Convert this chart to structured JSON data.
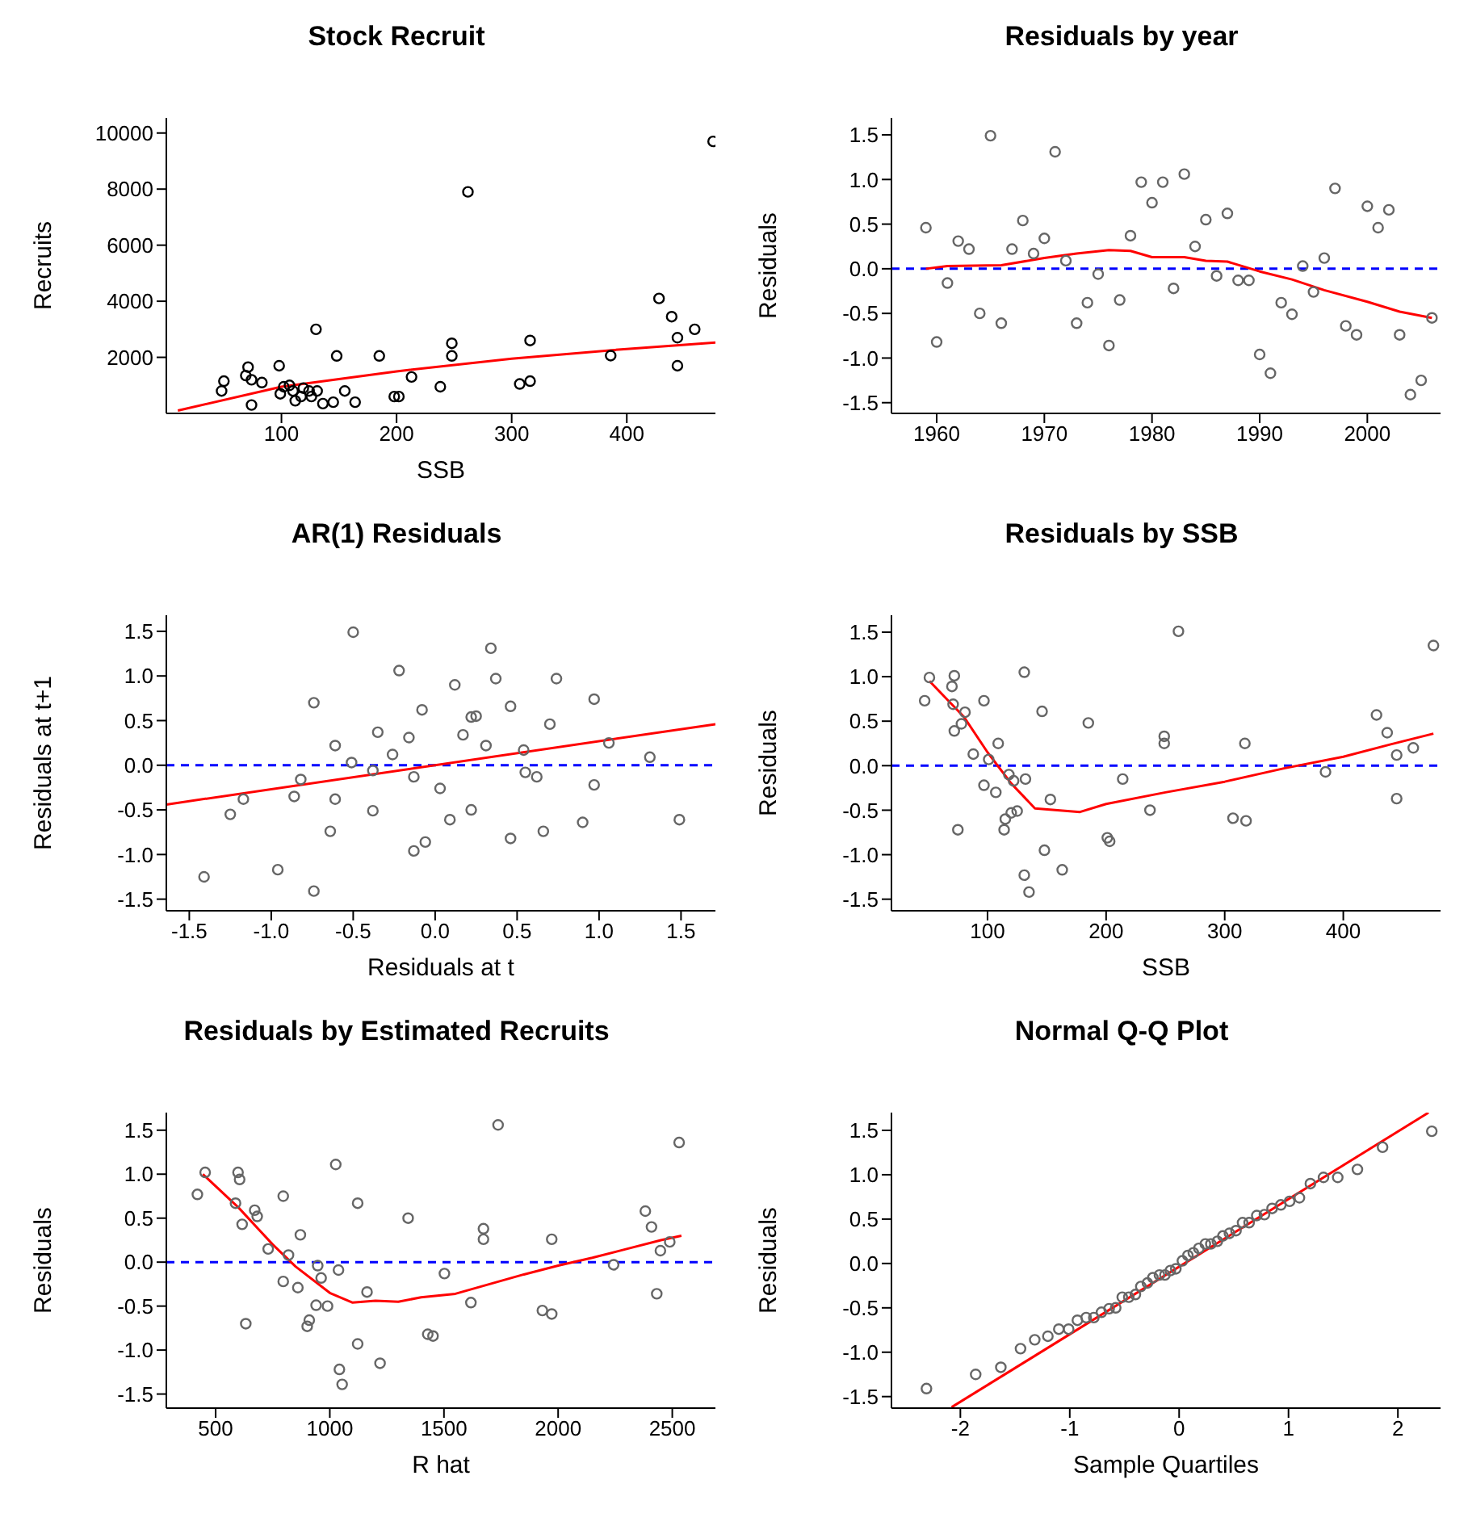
{
  "chart_data": [
    {
      "type": "scatter",
      "title": "Stock Recruit",
      "xlabel": "SSB",
      "ylabel": "Recruits",
      "xlim": [
        0,
        477
      ],
      "xticks": [
        100,
        200,
        300,
        400
      ],
      "ylim": [
        0,
        10540
      ],
      "yticks": [
        2000,
        4000,
        6000,
        8000,
        10000
      ],
      "series": [
        {
          "marker": "circle",
          "color": "#000000",
          "x": [
            475,
            262,
            428,
            439,
            459,
            444,
            444,
            386,
            316,
            316,
            307,
            248,
            248,
            238,
            213,
            202,
            198,
            185,
            148,
            130,
            98,
            71,
            69,
            74,
            83,
            50,
            48,
            74,
            107,
            99,
            112,
            119,
            124,
            131,
            136,
            145,
            155,
            164,
            110,
            117,
            102,
            126
          ],
          "values": [
            9700,
            7900,
            4100,
            3450,
            3000,
            2700,
            1700,
            2060,
            2600,
            1150,
            1050,
            2500,
            2050,
            950,
            1300,
            600,
            600,
            2050,
            2050,
            3000,
            1700,
            1650,
            1350,
            1200,
            1100,
            1150,
            800,
            300,
            1000,
            700,
            450,
            900,
            800,
            800,
            350,
            400,
            800,
            400,
            800,
            600,
            950,
            600
          ]
        },
        {
          "type": "line",
          "marker": "none",
          "color": "#ff0000",
          "x": [
            10,
            100,
            200,
            300,
            400,
            477
          ],
          "values": [
            100,
            950,
            1500,
            1950,
            2300,
            2530
          ]
        }
      ]
    },
    {
      "type": "scatter",
      "title": "Residuals by year",
      "ylabel": "Residuals",
      "xlim": [
        1955.8,
        2006.8
      ],
      "xticks": [
        1960,
        1970,
        1980,
        1990,
        2000
      ],
      "ylim": [
        -1.62,
        1.69
      ],
      "yticks": [
        -1.5,
        {
          "value": -1,
          "label": "-1.0"
        },
        -0.5,
        {
          "value": 0,
          "label": "0.0"
        },
        0.5,
        {
          "value": 1,
          "label": "1.0"
        },
        1.5
      ],
      "ref_lines": [
        {
          "axis": "y",
          "value": 0,
          "color": "#0000ff",
          "line_style": "dashed"
        }
      ],
      "series": [
        {
          "marker": "circle",
          "color": "#666666",
          "x": [
            1959,
            1960,
            1961,
            1962,
            1963,
            1964,
            1965,
            1966,
            1967,
            1968,
            1969,
            1970,
            1971,
            1972,
            1973,
            1974,
            1975,
            1976,
            1977,
            1978,
            1979,
            1980,
            1981,
            1982,
            1983,
            1984,
            1985,
            1986,
            1987,
            1988,
            1989,
            1990,
            1991,
            1992,
            1993,
            1994,
            1995,
            1996,
            1997,
            1998,
            1999,
            2000,
            2001,
            2002,
            2003,
            2004,
            2005,
            2006
          ],
          "values": [
            0.46,
            -0.82,
            -0.16,
            0.31,
            0.22,
            -0.5,
            1.49,
            -0.61,
            0.22,
            0.54,
            0.17,
            0.34,
            1.31,
            0.09,
            -0.61,
            -0.38,
            -0.06,
            -0.86,
            -0.35,
            0.37,
            0.97,
            0.74,
            0.97,
            -0.22,
            1.06,
            0.25,
            0.55,
            -0.08,
            0.62,
            -0.13,
            -0.13,
            -0.96,
            -1.17,
            -0.38,
            -0.51,
            0.03,
            -0.26,
            0.12,
            0.9,
            -0.64,
            -0.74,
            0.7,
            0.46,
            0.66,
            -0.74,
            -1.41,
            -1.25,
            -0.55
          ]
        },
        {
          "type": "line",
          "marker": "none",
          "color": "#ff0000",
          "x": [
            1959,
            1961,
            1966,
            1970,
            1973,
            1976,
            1978,
            1980,
            1983,
            1985,
            1987,
            1990,
            1993,
            1996,
            2000,
            2003,
            2006
          ],
          "values": [
            0,
            0.03,
            0.04,
            0.12,
            0.17,
            0.21,
            0.2,
            0.13,
            0.13,
            0.09,
            0.08,
            -0.03,
            -0.12,
            -0.24,
            -0.37,
            -0.48,
            -0.55
          ]
        }
      ]
    },
    {
      "type": "scatter",
      "title": "AR(1) Residuals",
      "xlabel": "Residuals at t",
      "ylabel": "Residuals at t+1",
      "xlim": [
        -1.64,
        1.71
      ],
      "xticks": [
        -1.5,
        {
          "value": -1,
          "label": "-1.0"
        },
        -0.5,
        {
          "value": 0,
          "label": "0.0"
        },
        0.5,
        {
          "value": 1,
          "label": "1.0"
        },
        1.5
      ],
      "ylim": [
        -1.63,
        1.68
      ],
      "yticks": [
        -1.5,
        {
          "value": -1,
          "label": "-1.0"
        },
        -0.5,
        {
          "value": 0,
          "label": "0.0"
        },
        0.5,
        {
          "value": 1,
          "label": "1.0"
        },
        1.5
      ],
      "ref_lines": [
        {
          "axis": "y",
          "value": 0,
          "color": "#0000ff",
          "line_style": "dashed"
        }
      ],
      "series": [
        {
          "marker": "circle",
          "color": "#666666",
          "x": [
            0.46,
            -0.82,
            -0.16,
            0.31,
            0.22,
            -0.5,
            1.49,
            -0.61,
            0.22,
            0.54,
            0.17,
            0.34,
            1.31,
            0.09,
            -0.61,
            -0.38,
            -0.06,
            -0.86,
            -0.35,
            0.37,
            0.97,
            0.74,
            0.97,
            -0.22,
            1.06,
            0.25,
            0.55,
            -0.08,
            0.62,
            -0.13,
            -0.13,
            -0.96,
            -1.17,
            -0.38,
            -0.51,
            0.03,
            -0.26,
            0.12,
            0.9,
            -0.64,
            -0.74,
            0.7,
            0.46,
            0.66,
            -0.74,
            -1.41,
            -1.25
          ],
          "values": [
            -0.82,
            -0.16,
            0.31,
            0.22,
            -0.5,
            1.49,
            -0.61,
            0.22,
            0.54,
            0.17,
            0.34,
            1.31,
            0.09,
            -0.61,
            -0.38,
            -0.06,
            -0.86,
            -0.35,
            0.37,
            0.97,
            0.74,
            0.97,
            -0.22,
            1.06,
            0.25,
            0.55,
            -0.08,
            0.62,
            -0.13,
            -0.13,
            -0.96,
            -1.17,
            -0.38,
            -0.51,
            0.03,
            -0.26,
            0.12,
            0.9,
            -0.64,
            -0.74,
            0.7,
            0.46,
            0.66,
            -0.74,
            -1.41,
            -1.25,
            -0.55
          ]
        },
        {
          "type": "line",
          "marker": "none",
          "color": "#ff0000",
          "x": [
            -1.64,
            1.71
          ],
          "values": [
            -0.44,
            0.46
          ]
        }
      ]
    },
    {
      "type": "scatter",
      "title": "Residuals by SSB",
      "xlabel": "SSB",
      "ylabel": "Residuals",
      "xlim": [
        19,
        482
      ],
      "xticks": [
        100,
        200,
        300,
        400
      ],
      "ylim": [
        -1.63,
        1.69
      ],
      "yticks": [
        -1.5,
        {
          "value": -1,
          "label": "-1.0"
        },
        -0.5,
        {
          "value": 0,
          "label": "0.0"
        },
        0.5,
        {
          "value": 1,
          "label": "1.0"
        },
        1.5
      ],
      "ref_lines": [
        {
          "axis": "y",
          "value": 0,
          "color": "#0000ff",
          "line_style": "dashed"
        }
      ],
      "series": [
        {
          "marker": "circle",
          "color": "#666666",
          "x": [
            51,
            47,
            72,
            70,
            71,
            81,
            78,
            72,
            75,
            88,
            97,
            101,
            109,
            97,
            107,
            118,
            122,
            132,
            131,
            115,
            114,
            120,
            125,
            131,
            135,
            146,
            148,
            153,
            163,
            185,
            201,
            203,
            214,
            237,
            249,
            249,
            261,
            307,
            318,
            317,
            385,
            428,
            437,
            445,
            445,
            459,
            476
          ],
          "values": [
            0.99,
            0.73,
            1.01,
            0.89,
            0.69,
            0.6,
            0.47,
            0.39,
            -0.72,
            0.13,
            0.73,
            0.07,
            0.25,
            -0.22,
            -0.3,
            -0.1,
            -0.17,
            -0.15,
            1.05,
            -0.6,
            -0.72,
            -0.53,
            -0.51,
            -1.23,
            -1.42,
            0.61,
            -0.95,
            -0.38,
            -1.17,
            0.48,
            -0.81,
            -0.85,
            -0.15,
            -0.5,
            0.33,
            0.25,
            1.51,
            -0.59,
            -0.62,
            0.25,
            -0.07,
            0.57,
            0.37,
            0.12,
            -0.37,
            0.2,
            1.35
          ]
        },
        {
          "type": "line",
          "marker": "none",
          "color": "#ff0000",
          "x": [
            51,
            80,
            100,
            120,
            140,
            178,
            200,
            250,
            300,
            350,
            400,
            440,
            476
          ],
          "values": [
            0.95,
            0.55,
            0.15,
            -0.2,
            -0.48,
            -0.52,
            -0.43,
            -0.3,
            -0.18,
            -0.03,
            0.1,
            0.24,
            0.36
          ]
        }
      ]
    },
    {
      "type": "scatter",
      "title": "Residuals by Estimated Recruits",
      "xlabel": "R hat",
      "ylabel": "Residuals",
      "xlim": [
        284,
        2689
      ],
      "xticks": [
        500,
        1000,
        1500,
        2000,
        2500
      ],
      "ylim": [
        -1.66,
        1.7
      ],
      "yticks": [
        -1.5,
        {
          "value": -1,
          "label": "-1.0"
        },
        -0.5,
        {
          "value": 0,
          "label": "0.0"
        },
        0.5,
        {
          "value": 1,
          "label": "1.0"
        },
        1.5
      ],
      "ref_lines": [
        {
          "axis": "y",
          "value": 0,
          "color": "#0000ff",
          "line_style": "dashed"
        }
      ],
      "series": [
        {
          "marker": "circle",
          "color": "#666666",
          "x": [
            454,
            420,
            598,
            605,
            587,
            616,
            671,
            682,
            632,
            730,
            796,
            819,
            871,
            796,
            860,
            947,
            962,
            1038,
            1026,
            940,
            910,
            901,
            990,
            1042,
            1054,
            1122,
            1122,
            1163,
            1220,
            1343,
            1429,
            1452,
            1502,
            1618,
            1673,
            1673,
            1737,
            1931,
            1972,
            1972,
            2243,
            2382,
            2409,
            2448,
            2432,
            2489,
            2530
          ],
          "values": [
            1.02,
            0.77,
            1.02,
            0.94,
            0.67,
            0.43,
            0.59,
            0.52,
            -0.7,
            0.15,
            0.75,
            0.08,
            0.31,
            -0.22,
            -0.29,
            -0.04,
            -0.18,
            -0.09,
            1.11,
            -0.49,
            -0.66,
            -0.73,
            -0.5,
            -1.22,
            -1.39,
            0.67,
            -0.93,
            -0.34,
            -1.15,
            0.5,
            -0.82,
            -0.84,
            -0.13,
            -0.46,
            0.38,
            0.26,
            1.56,
            -0.55,
            -0.59,
            0.26,
            -0.03,
            0.58,
            0.4,
            0.13,
            -0.36,
            0.23,
            1.36
          ]
        },
        {
          "type": "line",
          "marker": "none",
          "color": "#ff0000",
          "x": [
            444,
            600,
            750,
            850,
            1000,
            1100,
            1200,
            1300,
            1400,
            1550,
            1700,
            1850,
            2000,
            2150,
            2300,
            2450,
            2540
          ],
          "values": [
            1.0,
            0.62,
            0.2,
            -0.05,
            -0.35,
            -0.46,
            -0.44,
            -0.45,
            -0.4,
            -0.36,
            -0.25,
            -0.14,
            -0.04,
            0.05,
            0.15,
            0.25,
            0.3
          ]
        }
      ]
    },
    {
      "type": "scatter",
      "title": "Normal Q-Q Plot",
      "xlabel": "Sample Quartiles",
      "ylabel": "Residuals",
      "xlim": [
        -2.63,
        2.39
      ],
      "xticks": [
        -2,
        -1,
        0,
        1,
        2
      ],
      "ylim": [
        -1.63,
        1.7
      ],
      "yticks": [
        -1.5,
        {
          "value": -1,
          "label": "-1.0"
        },
        -0.5,
        {
          "value": 0,
          "label": "0.0"
        },
        0.5,
        {
          "value": 1,
          "label": "1.0"
        },
        1.5
      ],
      "series": [
        {
          "marker": "circle",
          "color": "#666666",
          "x": [
            -2.31,
            -1.86,
            -1.63,
            -1.45,
            -1.32,
            -1.2,
            -1.1,
            -1.01,
            -0.93,
            -0.85,
            -0.78,
            -0.71,
            -0.64,
            -0.58,
            -0.52,
            -0.46,
            -0.4,
            -0.35,
            -0.29,
            -0.24,
            -0.18,
            -0.13,
            -0.08,
            -0.03,
            0.03,
            0.08,
            0.13,
            0.18,
            0.24,
            0.29,
            0.35,
            0.4,
            0.46,
            0.52,
            0.58,
            0.64,
            0.71,
            0.78,
            0.85,
            0.93,
            1.01,
            1.1,
            1.2,
            1.32,
            1.45,
            1.63,
            1.86,
            2.31
          ],
          "values": [
            -1.41,
            -1.25,
            -1.17,
            -0.96,
            -0.86,
            -0.82,
            -0.74,
            -0.74,
            -0.64,
            -0.61,
            -0.61,
            -0.55,
            -0.51,
            -0.5,
            -0.38,
            -0.38,
            -0.35,
            -0.26,
            -0.22,
            -0.16,
            -0.13,
            -0.13,
            -0.08,
            -0.06,
            0.03,
            0.09,
            0.12,
            0.17,
            0.22,
            0.22,
            0.25,
            0.31,
            0.34,
            0.37,
            0.46,
            0.46,
            0.54,
            0.55,
            0.62,
            0.66,
            0.7,
            0.74,
            0.9,
            0.97,
            0.97,
            1.06,
            1.31,
            1.49
          ]
        },
        {
          "type": "line",
          "marker": "none",
          "color": "#ff0000",
          "x": [
            -2.08,
            2.28
          ],
          "values": [
            -1.62,
            1.7
          ]
        }
      ]
    }
  ]
}
